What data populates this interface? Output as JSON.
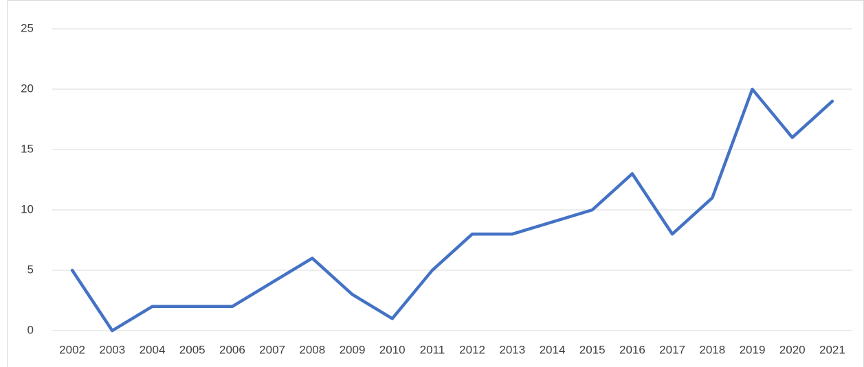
{
  "chart_data": {
    "type": "line",
    "categories": [
      "2002",
      "2003",
      "2004",
      "2005",
      "2006",
      "2007",
      "2008",
      "2009",
      "2010",
      "2011",
      "2012",
      "2013",
      "2014",
      "2015",
      "2016",
      "2017",
      "2018",
      "2019",
      "2020",
      "2021"
    ],
    "series": [
      {
        "color": "#4472c4",
        "values": [
          5,
          0,
          2,
          2,
          2,
          4,
          6,
          3,
          1,
          5,
          8,
          8,
          9,
          10,
          13,
          8,
          11,
          20,
          16,
          19
        ]
      }
    ],
    "ylim": [
      0,
      25
    ],
    "yticks": [
      0,
      5,
      10,
      15,
      20,
      25
    ],
    "grid": true
  }
}
